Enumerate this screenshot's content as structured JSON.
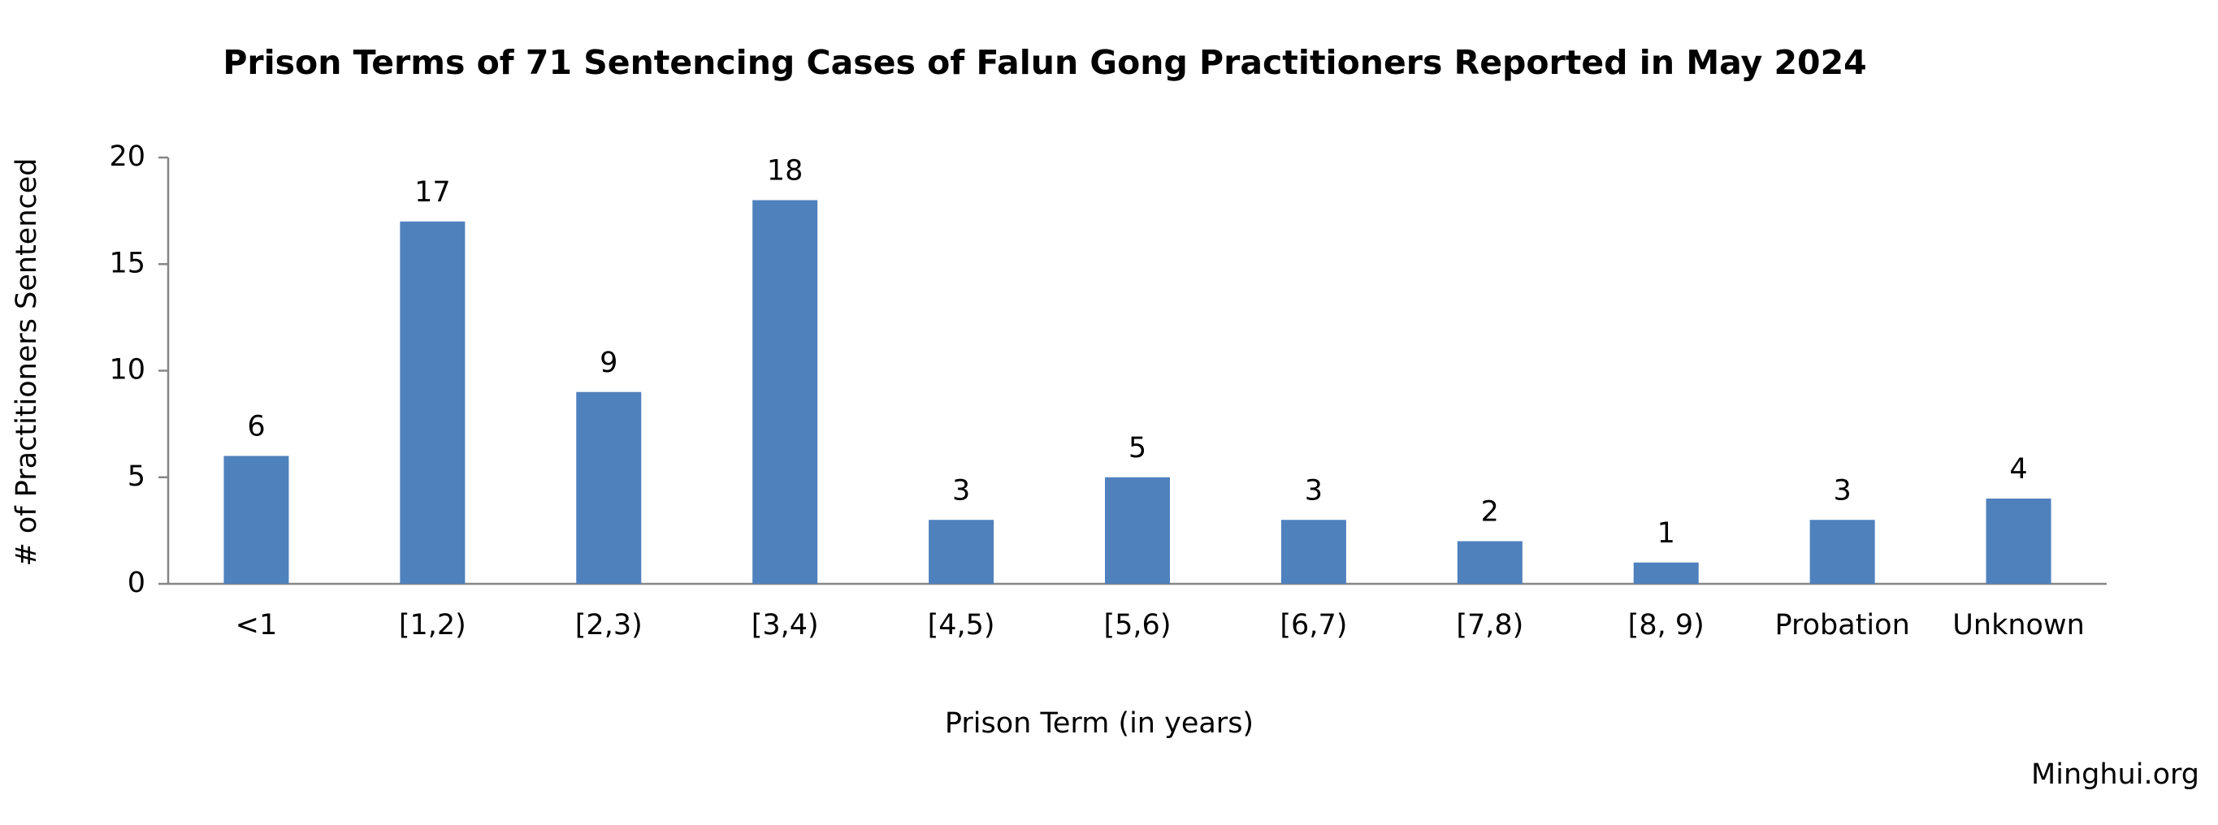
{
  "chart_data": {
    "type": "bar",
    "title": "Prison Terms of 71 Sentencing Cases of Falun Gong Practitioners Reported in May 2024",
    "x_label": "Prison Term (in years)",
    "y_label": "# of Practitioners Sentenced",
    "source": "Minghui.org",
    "categories": [
      "<1",
      "[1,2)",
      "[2,3)",
      "[3,4)",
      "[4,5)",
      "[5,6)",
      "[6,7)",
      "[7,8)",
      "[8, 9)",
      "Probation",
      "Unknown"
    ],
    "values": [
      6,
      17,
      9,
      18,
      3,
      5,
      3,
      2,
      1,
      3,
      4
    ],
    "color": "#4f81bd",
    "ylim": [
      0,
      20
    ],
    "yticks": [
      0,
      5,
      10,
      15,
      20
    ],
    "grid": false
  }
}
